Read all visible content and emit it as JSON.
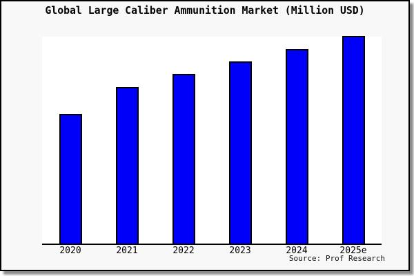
{
  "page": {
    "title": "Global Large Caliber Ammunition Market (Million USD)",
    "source": "Source: Prof Research"
  },
  "colors": {
    "bar_fill": "#0000f8",
    "bar_edge": "#000000",
    "card_bg": "#f8f8f8",
    "plot_bg": "#ffffff",
    "axis": "#000000",
    "shadow": "#737373"
  },
  "chart_data": {
    "type": "bar",
    "title": "Global Large Caliber Ammunition Market (Million USD)",
    "categories": [
      "2020",
      "2021",
      "2022",
      "2023",
      "2024",
      "2025e"
    ],
    "values": [
      62.5,
      75.3,
      81.6,
      87.7,
      93.7,
      100
    ],
    "value_unit": "relative index (no y-axis ticks shown; tallest bar 2025e = 100)",
    "xlabel": "",
    "ylabel": "",
    "ylim": [
      0,
      100
    ],
    "grid": false,
    "legend": false,
    "y_axis_visible": false,
    "annotations": [
      "Source: Prof Research"
    ]
  }
}
